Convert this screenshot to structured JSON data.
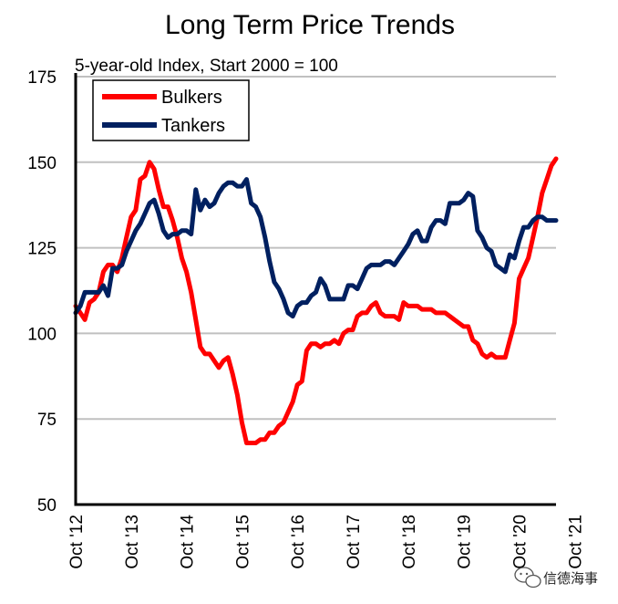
{
  "chart_data": {
    "type": "line",
    "title": "Long Term Price Trends",
    "subtitle": "5-year-old Index, Start 2000 = 100",
    "xlabel": "",
    "ylabel": "",
    "ylim": [
      50,
      175
    ],
    "yticks": [
      50,
      75,
      100,
      125,
      150,
      175
    ],
    "x_tick_labels": [
      "Oct '12",
      "Oct '13",
      "Oct '14",
      "Oct '15",
      "Oct '16",
      "Oct '17",
      "Oct '18",
      "Oct '19",
      "Oct '20",
      "Oct '21"
    ],
    "x_unit": "months since Oct '12",
    "grid": "horizontal",
    "legend_position": "top-left",
    "series": [
      {
        "name": "Bulkers",
        "color": "#ff0000",
        "points": [
          [
            0,
            108
          ],
          [
            1,
            106
          ],
          [
            2,
            104
          ],
          [
            3,
            109
          ],
          [
            4,
            110
          ],
          [
            5,
            112
          ],
          [
            6,
            118
          ],
          [
            7,
            120
          ],
          [
            8,
            120
          ],
          [
            9,
            118
          ],
          [
            10,
            122
          ],
          [
            11,
            128
          ],
          [
            12,
            134
          ],
          [
            13,
            136
          ],
          [
            14,
            145
          ],
          [
            15,
            146
          ],
          [
            16,
            150
          ],
          [
            17,
            148
          ],
          [
            18,
            142
          ],
          [
            19,
            137
          ],
          [
            20,
            137
          ],
          [
            21,
            133
          ],
          [
            22,
            128
          ],
          [
            23,
            122
          ],
          [
            24,
            118
          ],
          [
            25,
            112
          ],
          [
            26,
            104
          ],
          [
            27,
            96
          ],
          [
            28,
            94
          ],
          [
            29,
            94
          ],
          [
            30,
            92
          ],
          [
            31,
            90
          ],
          [
            32,
            92
          ],
          [
            33,
            93
          ],
          [
            34,
            88
          ],
          [
            35,
            82
          ],
          [
            36,
            74
          ],
          [
            37,
            68
          ],
          [
            38,
            68
          ],
          [
            39,
            68
          ],
          [
            40,
            69
          ],
          [
            41,
            69
          ],
          [
            42,
            71
          ],
          [
            43,
            71
          ],
          [
            44,
            73
          ],
          [
            45,
            74
          ],
          [
            46,
            77
          ],
          [
            47,
            80
          ],
          [
            48,
            85
          ],
          [
            49,
            86
          ],
          [
            50,
            95
          ],
          [
            51,
            97
          ],
          [
            52,
            97
          ],
          [
            53,
            96
          ],
          [
            54,
            97
          ],
          [
            55,
            97
          ],
          [
            56,
            98
          ],
          [
            57,
            97
          ],
          [
            58,
            100
          ],
          [
            59,
            101
          ],
          [
            60,
            101
          ],
          [
            61,
            105
          ],
          [
            62,
            106
          ],
          [
            63,
            106
          ],
          [
            64,
            108
          ],
          [
            65,
            109
          ],
          [
            66,
            106
          ],
          [
            67,
            105
          ],
          [
            68,
            105
          ],
          [
            69,
            105
          ],
          [
            70,
            104
          ],
          [
            71,
            109
          ],
          [
            72,
            108
          ],
          [
            73,
            108
          ],
          [
            74,
            108
          ],
          [
            75,
            107
          ],
          [
            76,
            107
          ],
          [
            77,
            107
          ],
          [
            78,
            106
          ],
          [
            79,
            106
          ],
          [
            80,
            106
          ],
          [
            81,
            105
          ],
          [
            82,
            104
          ],
          [
            83,
            103
          ],
          [
            84,
            102
          ],
          [
            85,
            102
          ],
          [
            86,
            98
          ],
          [
            87,
            97
          ],
          [
            88,
            94
          ],
          [
            89,
            93
          ],
          [
            90,
            94
          ],
          [
            91,
            93
          ],
          [
            92,
            93
          ],
          [
            93,
            93
          ],
          [
            94,
            98
          ],
          [
            95,
            103
          ],
          [
            96,
            116
          ],
          [
            97,
            119
          ],
          [
            98,
            122
          ],
          [
            99,
            128
          ],
          [
            100,
            134
          ],
          [
            101,
            141
          ],
          [
            102,
            145
          ],
          [
            103,
            149
          ],
          [
            104,
            151
          ]
        ]
      },
      {
        "name": "Tankers",
        "color": "#002060",
        "points": [
          [
            0,
            106
          ],
          [
            1,
            108
          ],
          [
            2,
            112
          ],
          [
            3,
            112
          ],
          [
            4,
            112
          ],
          [
            5,
            112
          ],
          [
            6,
            114
          ],
          [
            7,
            111
          ],
          [
            8,
            119
          ],
          [
            9,
            119
          ],
          [
            10,
            120
          ],
          [
            11,
            124
          ],
          [
            12,
            127
          ],
          [
            13,
            130
          ],
          [
            14,
            132
          ],
          [
            15,
            135
          ],
          [
            16,
            138
          ],
          [
            17,
            139
          ],
          [
            18,
            135
          ],
          [
            19,
            130
          ],
          [
            20,
            128
          ],
          [
            21,
            129
          ],
          [
            22,
            129
          ],
          [
            23,
            130
          ],
          [
            24,
            130
          ],
          [
            25,
            129
          ],
          [
            26,
            142
          ],
          [
            27,
            136
          ],
          [
            28,
            139
          ],
          [
            29,
            137
          ],
          [
            30,
            138
          ],
          [
            31,
            141
          ],
          [
            32,
            143
          ],
          [
            33,
            144
          ],
          [
            34,
            144
          ],
          [
            35,
            143
          ],
          [
            36,
            143
          ],
          [
            37,
            145
          ],
          [
            38,
            138
          ],
          [
            39,
            137
          ],
          [
            40,
            134
          ],
          [
            41,
            128
          ],
          [
            42,
            121
          ],
          [
            43,
            115
          ],
          [
            44,
            113
          ],
          [
            45,
            110
          ],
          [
            46,
            106
          ],
          [
            47,
            105
          ],
          [
            48,
            108
          ],
          [
            49,
            109
          ],
          [
            50,
            109
          ],
          [
            51,
            111
          ],
          [
            52,
            112
          ],
          [
            53,
            116
          ],
          [
            54,
            114
          ],
          [
            55,
            110
          ],
          [
            56,
            110
          ],
          [
            57,
            110
          ],
          [
            58,
            110
          ],
          [
            59,
            114
          ],
          [
            60,
            114
          ],
          [
            61,
            113
          ],
          [
            62,
            116
          ],
          [
            63,
            119
          ],
          [
            64,
            120
          ],
          [
            65,
            120
          ],
          [
            66,
            120
          ],
          [
            67,
            121
          ],
          [
            68,
            121
          ],
          [
            69,
            120
          ],
          [
            70,
            122
          ],
          [
            71,
            124
          ],
          [
            72,
            126
          ],
          [
            73,
            129
          ],
          [
            74,
            130
          ],
          [
            75,
            127
          ],
          [
            76,
            127
          ],
          [
            77,
            131
          ],
          [
            78,
            133
          ],
          [
            79,
            133
          ],
          [
            80,
            132
          ],
          [
            81,
            138
          ],
          [
            82,
            138
          ],
          [
            83,
            138
          ],
          [
            84,
            139
          ],
          [
            85,
            141
          ],
          [
            86,
            140
          ],
          [
            87,
            130
          ],
          [
            88,
            128
          ],
          [
            89,
            125
          ],
          [
            90,
            124
          ],
          [
            91,
            120
          ],
          [
            92,
            119
          ],
          [
            93,
            118
          ],
          [
            94,
            123
          ],
          [
            95,
            122
          ],
          [
            96,
            127
          ],
          [
            97,
            131
          ],
          [
            98,
            131
          ],
          [
            99,
            133
          ],
          [
            100,
            134
          ],
          [
            101,
            134
          ],
          [
            102,
            133
          ],
          [
            103,
            133
          ],
          [
            104,
            133
          ]
        ]
      }
    ]
  },
  "watermark": {
    "icon": "wechat-icon",
    "text": "信德海事"
  }
}
